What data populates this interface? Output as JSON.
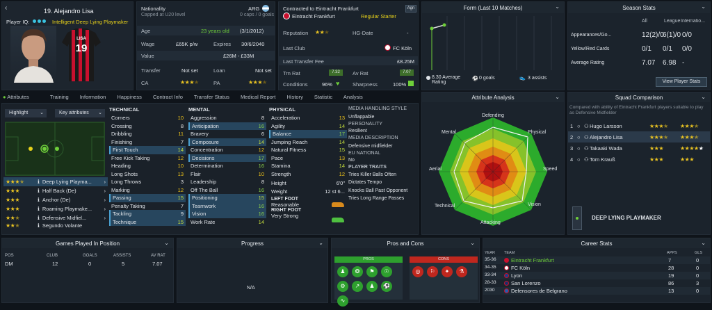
{
  "player": {
    "number_name": "19. Alejandro Lisa",
    "iq_label": "Player IQ:",
    "iq_role": "Intelligent",
    "iq_role2": "Deep Lying Playmaker",
    "shirt_name": "LISA",
    "shirt_number": "19"
  },
  "info": {
    "nationality_label": "Nationality",
    "nationality": "ARG",
    "caps": "Capped at U20 level",
    "caps_goals": "0 caps / 0 goals",
    "age_label": "Age",
    "age": "23 years old",
    "dob": "(3/1/2012)",
    "wage_label": "Wage",
    "wage": "£65K p/w",
    "expires_label": "Expires",
    "expires": "30/6/2040",
    "value_label": "Value",
    "value": "£26M - £33M",
    "transfer_label": "Transfer",
    "transfer": "Not set",
    "loan_label": "Loan",
    "loan": "Not set",
    "ca_label": "CA",
    "pa_label": "PA"
  },
  "contract": {
    "title": "Contracted to Eintracht Frankfurt",
    "club": "Eintracht Frankfurt",
    "status": "Regular Starter",
    "badge": "Agn",
    "reputation_label": "Reputation",
    "hg_label": "HG-Date",
    "hg": "-",
    "last_club_label": "Last Club",
    "last_club": "FC Köln",
    "last_fee_label": "Last Transfer Fee",
    "last_fee": "£8.25M",
    "trn_label": "Trn Rat",
    "trn": "7.32",
    "avrat_label": "Av Rat",
    "avrat": "7.07",
    "cond_label": "Conditions",
    "cond": "96%",
    "sharp_label": "Sharpness",
    "sharp": "100%"
  },
  "form": {
    "title": "Form (Last 10 Matches)",
    "avg": "8.30 Average Rating",
    "goals": "0 goals",
    "assists": "3 assists"
  },
  "season": {
    "title": "Season Stats",
    "cols": [
      "All",
      "League",
      "Internatio..."
    ],
    "rows": [
      {
        "label": "Appearances/Go...",
        "a": "12(2)/0",
        "b": "6(1)/0",
        "c": "0/0"
      },
      {
        "label": "Yellow/Red Cards",
        "a": "0/1",
        "b": "0/1",
        "c": "0/0"
      },
      {
        "label": "Average Rating",
        "a": "7.07",
        "b": "6.98",
        "c": "-"
      }
    ],
    "btn": "View Player Stats"
  },
  "tabs": [
    "Attributes",
    "Training",
    "Information",
    "Happiness",
    "Contract Info",
    "Transfer Status",
    "Medical Report",
    "History",
    "Statistic",
    "Analysis"
  ],
  "highlight": "Highlight",
  "key_attr": "Key attributes",
  "roles": [
    {
      "name": "Deep Lying Playma...",
      "stars": 3.5
    },
    {
      "name": "Half Back (De)",
      "stars": 3
    },
    {
      "name": "Anchor (De)",
      "stars": 3
    },
    {
      "name": "Roaming Playmake...",
      "stars": 3
    },
    {
      "name": "Defensive Midfiel...",
      "stars": 2.5
    },
    {
      "name": "Segundo Volante",
      "stars": 2.5
    }
  ],
  "technical": {
    "title": "TECHNICAL",
    "items": [
      [
        "Corners",
        "10"
      ],
      [
        "Crossing",
        "8"
      ],
      [
        "Dribbling",
        "11"
      ],
      [
        "Finishing",
        "7"
      ],
      [
        "First Touch",
        "14"
      ],
      [
        "Free Kick Taking",
        "12"
      ],
      [
        "Heading",
        "10"
      ],
      [
        "Long Shots",
        "13"
      ],
      [
        "Long Throws",
        "3"
      ],
      [
        "Marking",
        "12"
      ],
      [
        "Passing",
        "15"
      ],
      [
        "Penalty Taking",
        "7"
      ],
      [
        "Tackling",
        "9"
      ],
      [
        "Technique",
        "15"
      ]
    ]
  },
  "mental": {
    "title": "MENTAL",
    "items": [
      [
        "Aggression",
        "8"
      ],
      [
        "Anticipation",
        "16"
      ],
      [
        "Bravery",
        "6"
      ],
      [
        "Composure",
        "14"
      ],
      [
        "Concentration",
        "12"
      ],
      [
        "Decisions",
        "17"
      ],
      [
        "Determination",
        "16"
      ],
      [
        "Flair",
        "10"
      ],
      [
        "Leadership",
        "8"
      ],
      [
        "Off The Ball",
        "16"
      ],
      [
        "Positioning",
        "15"
      ],
      [
        "Teamwork",
        "16"
      ],
      [
        "Vision",
        "16"
      ],
      [
        "Work Rate",
        "14"
      ]
    ]
  },
  "physical": {
    "title": "PHYSICAL",
    "items": [
      [
        "Acceleration",
        "13"
      ],
      [
        "Agility",
        "14"
      ],
      [
        "Balance",
        "17"
      ],
      [
        "Jumping Reach",
        "14"
      ],
      [
        "Natural Fitness",
        "15"
      ],
      [
        "Pace",
        "13"
      ],
      [
        "Stamina",
        "14"
      ],
      [
        "Strength",
        "12"
      ]
    ],
    "height_label": "Height",
    "height": "6'0\"",
    "weight_label": "Weight",
    "weight": "12 st 6...",
    "lf_label": "LEFT FOOT",
    "lf": "Reasonable",
    "rf_label": "RIGHT FOOT",
    "rf": "Very Strong"
  },
  "media": {
    "style_title": "MEDIA HANDLING STYLE",
    "style": "Unflappable",
    "pers_title": "PERSONALITY",
    "pers": "Resilient",
    "desc_title": "MEDIA DESCRIPTION",
    "desc": "Defensive midfielder",
    "eu_title": "EU NATIONAL",
    "eu": "No",
    "traits_title": "PLAYER TRAITS",
    "traits": [
      "Tries Killer Balls Often",
      "Dictates Tempo",
      "Knocks Ball Past Opponent",
      "Tries Long Range Passes"
    ]
  },
  "analysis": {
    "title": "Attribute Analysis",
    "labels": [
      "Defending",
      "Physical",
      "Speed",
      "Vision",
      "Attacking",
      "Technical",
      "Aerial",
      "Mental"
    ]
  },
  "squad": {
    "title": "Squad Comparison",
    "desc": "Compared with ability of Eintracht Frankfurt players suitable to play as Defensive Midfielder",
    "rows": [
      {
        "n": "1",
        "name": "Hugo Larsson",
        "s1": 3.5,
        "s2": 3.5
      },
      {
        "n": "2",
        "name": "Alejandro Lisa",
        "s1": 3.5,
        "s2": 3.5
      },
      {
        "n": "3",
        "name": "Takaaki Wada",
        "s1": 3,
        "s2": 4.5
      },
      {
        "n": "4",
        "name": "Tom Krauß",
        "s1": 3,
        "s2": 3
      }
    ],
    "role": "DEEP LYING PLAYMAKER"
  },
  "games": {
    "title": "Games Played In Position",
    "cols": [
      "POS",
      "CLUB",
      "GOALS",
      "ASSISTS",
      "AV RAT"
    ],
    "row": [
      "DM",
      "12",
      "0",
      "5",
      "7.07"
    ]
  },
  "progress": {
    "title": "Progress",
    "na": "N/A"
  },
  "proscons": {
    "title": "Pros and Cons",
    "pros": "PROS",
    "cons": "CONS"
  },
  "career": {
    "title": "Career Stats",
    "cols": [
      "YEAR",
      "TEAM",
      "APPS",
      "GLS"
    ],
    "rows": [
      [
        "35-36",
        "Eintracht Frankfurt",
        "7",
        "0"
      ],
      [
        "34-35",
        "FC Köln",
        "28",
        "0"
      ],
      [
        "33-34",
        "Lyon",
        "19",
        "0"
      ],
      [
        "28-33",
        "San Lorenzo",
        "86",
        "3"
      ],
      [
        "2030",
        "Defensores de Belgrano",
        "13",
        "0"
      ]
    ]
  },
  "colors": {
    "accent_green": "#6fcf3a",
    "star": "#e9c322",
    "highlight_row": "#27465e"
  }
}
